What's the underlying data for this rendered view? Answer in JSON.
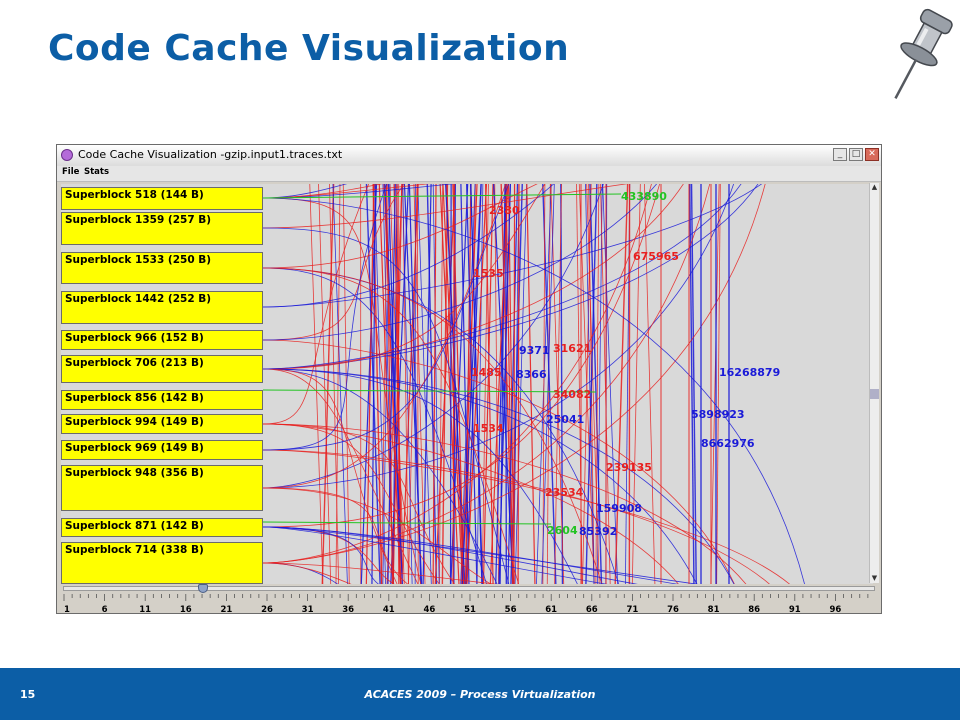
{
  "slide": {
    "title": "Code Cache Visualization",
    "page_number": "15",
    "footer_text": "ACACES 2009 – Process Virtualization",
    "colors": {
      "title": "#0c5ea6",
      "footer_band": "#0c5ea6",
      "block_fill": "#ffff00",
      "trace_red": "#e8201f",
      "trace_blue": "#1a1ad8",
      "trace_green": "#22c322"
    }
  },
  "window": {
    "title": "Code Cache Visualization -gzip.input1.traces.txt",
    "menu": [
      "File",
      "Stats"
    ],
    "controls": [
      "minimize-icon",
      "maximize-icon",
      "close-icon"
    ]
  },
  "superblocks": [
    "Superblock 518 (144 B)",
    "Superblock 1359 (257 B)",
    "Superblock 1533 (250 B)",
    "Superblock 1442 (252 B)",
    "Superblock 966 (152 B)",
    "Superblock 706 (213 B)",
    "Superblock 856 (142 B)",
    "Superblock 994 (149 B)",
    "Superblock 969 (149 B)",
    "Superblock 948 (356 B)",
    "Superblock 871 (142 B)",
    "Superblock 714 (338 B)"
  ],
  "trace_labels": [
    {
      "text": "433890",
      "color": "green"
    },
    {
      "text": "675965",
      "color": "red"
    },
    {
      "text": "9371",
      "color": "blue"
    },
    {
      "text": "31621",
      "color": "red"
    },
    {
      "text": "8366",
      "color": "blue"
    },
    {
      "text": "16268879",
      "color": "blue"
    },
    {
      "text": "34082",
      "color": "red"
    },
    {
      "text": "5898923",
      "color": "blue"
    },
    {
      "text": "25041",
      "color": "blue"
    },
    {
      "text": "8662976",
      "color": "blue"
    },
    {
      "text": "239135",
      "color": "red"
    },
    {
      "text": "23534",
      "color": "red"
    },
    {
      "text": "159908",
      "color": "blue"
    },
    {
      "text": "2604",
      "color": "green"
    },
    {
      "text": "85392",
      "color": "blue"
    },
    {
      "text": "1485",
      "color": "red"
    },
    {
      "text": "1534",
      "color": "red"
    },
    {
      "text": "1535",
      "color": "red"
    },
    {
      "text": "2380",
      "color": "red"
    }
  ],
  "slider": {
    "ticks": [
      "1",
      "6",
      "11",
      "16",
      "21",
      "26",
      "31",
      "36",
      "41",
      "46",
      "51",
      "56",
      "61",
      "66",
      "71",
      "76",
      "81",
      "86",
      "91",
      "96"
    ]
  }
}
